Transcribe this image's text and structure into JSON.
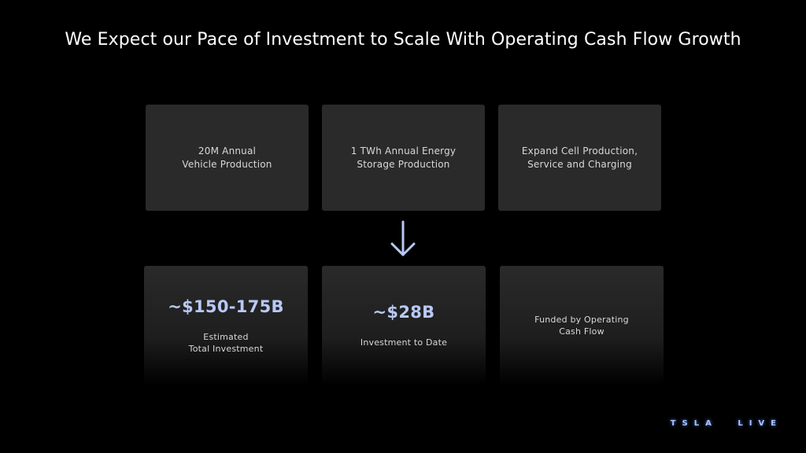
{
  "slide": {
    "title": "We Expect our Pace of Investment to Scale With Operating Cash Flow Growth"
  },
  "goals": [
    {
      "label": "20M Annual\nVehicle Production"
    },
    {
      "label": "1 TWh Annual Energy\nStorage Production"
    },
    {
      "label": "Expand Cell Production,\nService and Charging"
    }
  ],
  "investment": {
    "estimated": {
      "value": "~$150-175B",
      "label": "Estimated\nTotal Investment"
    },
    "to_date": {
      "value": "~$28B",
      "label": "Investment to Date"
    },
    "funding": {
      "label": "Funded by Operating\nCash Flow"
    }
  },
  "footer": {
    "logo": "TSLA LIVE"
  },
  "colors": {
    "accent": "#b8c9f5",
    "card": "#2a2a2a",
    "background": "#000000"
  },
  "icons": {
    "arrow": "arrow-down-icon"
  }
}
